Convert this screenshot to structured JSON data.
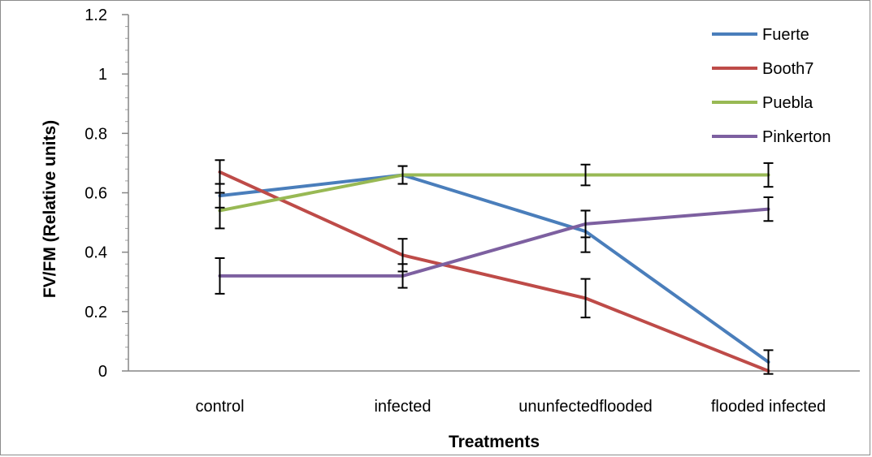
{
  "chart_data": {
    "type": "line",
    "title": "",
    "xlabel": "Treatments",
    "ylabel": "FV/FM (Relative units)",
    "ylim": [
      0,
      1.2
    ],
    "ytick_step": 0.2,
    "yticks": [
      "0",
      "0.2",
      "0.4",
      "0.6",
      "0.8",
      "1",
      "1.2"
    ],
    "categories": [
      "control",
      "infected",
      "ununfectedflooded",
      "flooded infected"
    ],
    "legend_position": "top-right",
    "series": [
      {
        "name": "Fuerte",
        "color": "#4a7ebb",
        "values": [
          0.59,
          0.66,
          0.47,
          0.03
        ],
        "errors": [
          0.04,
          0.03,
          0.07,
          0.04
        ]
      },
      {
        "name": "Booth7",
        "color": "#be4b48",
        "values": [
          0.67,
          0.39,
          0.245,
          0.0
        ],
        "errors": [
          0.04,
          0.055,
          0.065,
          0.0
        ]
      },
      {
        "name": "Puebla",
        "color": "#98b954",
        "values": [
          0.54,
          0.66,
          0.66,
          0.66
        ],
        "errors": [
          0.06,
          0.03,
          0.035,
          0.04
        ]
      },
      {
        "name": "Pinkerton",
        "color": "#7d60a0",
        "values": [
          0.32,
          0.32,
          0.495,
          0.545
        ],
        "errors": [
          0.06,
          0.04,
          0.045,
          0.04
        ]
      }
    ]
  }
}
